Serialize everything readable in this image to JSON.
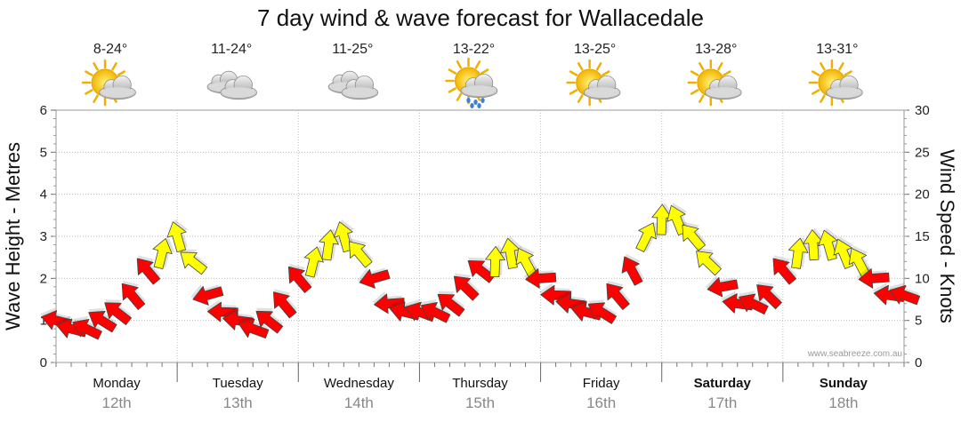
{
  "chart_data": {
    "type": "line",
    "title": "7 day wind & wave forecast for Wallacedale",
    "ylabel_left": "Wave Height - Metres",
    "ylabel_right": "Wind Speed - Knots",
    "ylim_left": [
      0,
      6
    ],
    "ylim_right": [
      0,
      30
    ],
    "yticks_left": [
      "0",
      "1",
      "2",
      "3",
      "4",
      "5",
      "6"
    ],
    "yticks_right": [
      "0",
      "5",
      "10",
      "15",
      "20",
      "25",
      "30"
    ],
    "grid": true,
    "days": [
      {
        "name": "Monday",
        "date": "12th",
        "temp": "8-24°",
        "weather": "partly-cloudy",
        "bold": false
      },
      {
        "name": "Tuesday",
        "date": "13th",
        "temp": "11-24°",
        "weather": "cloudy",
        "bold": false
      },
      {
        "name": "Wednesday",
        "date": "14th",
        "temp": "11-25°",
        "weather": "cloudy",
        "bold": false
      },
      {
        "name": "Thursday",
        "date": "15th",
        "temp": "13-22°",
        "weather": "shower",
        "bold": false
      },
      {
        "name": "Friday",
        "date": "16th",
        "temp": "13-25°",
        "weather": "partly-cloudy",
        "bold": false
      },
      {
        "name": "Saturday",
        "date": "17th",
        "temp": "13-28°",
        "weather": "partly-cloudy",
        "bold": true
      },
      {
        "name": "Sunday",
        "date": "18th",
        "temp": "13-31°",
        "weather": "partly-cloudy",
        "bold": true
      }
    ],
    "wind_series": {
      "name": "Wind speed",
      "x_hours": [
        0,
        3,
        6,
        9,
        12,
        15,
        18,
        21,
        24,
        27,
        30,
        33,
        36,
        39,
        42,
        45,
        48,
        51,
        54,
        57,
        60,
        63,
        66,
        69,
        72,
        75,
        78,
        81,
        84,
        87,
        90,
        93,
        96,
        99,
        102,
        105,
        108,
        111,
        114,
        117,
        120,
        123,
        126,
        129,
        132,
        135,
        138,
        141,
        144,
        147,
        150,
        153,
        156,
        159,
        162,
        165,
        168
      ],
      "knots": [
        5,
        4,
        4,
        5,
        6,
        8,
        11,
        13,
        15,
        12,
        8,
        6,
        5,
        4,
        5,
        7,
        10,
        12,
        14,
        15,
        13,
        10,
        7,
        6,
        6,
        6,
        7,
        9,
        11,
        12,
        13,
        12,
        10,
        8,
        7,
        6,
        6,
        8,
        11,
        15,
        17,
        17,
        15,
        12,
        9,
        7,
        7,
        8,
        11,
        13,
        14,
        14,
        13,
        12,
        10,
        8,
        8
      ]
    },
    "credit": "www.seabreeze.com.au",
    "colors": {
      "calm": "#ff0000",
      "moderate": "#ffff00",
      "outline": "#444444"
    }
  }
}
